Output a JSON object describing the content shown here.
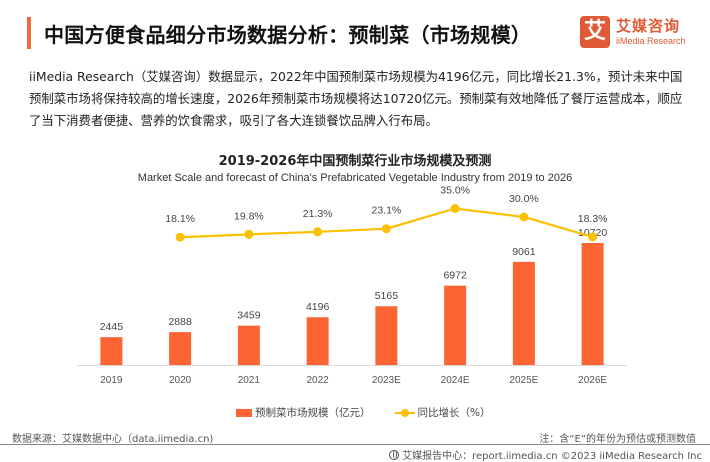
{
  "header": {
    "title": "中国方便食品细分市场数据分析：预制菜（市场规模）",
    "accent_color": "#f46a3c"
  },
  "logo": {
    "glyph": "艾",
    "name_cn": "艾媒咨询",
    "name_en": "iiMedia Research",
    "color": "#e05a35"
  },
  "intro": {
    "text": "iiMedia Research（艾媒咨询）数据显示，2022年中国预制菜市场规模为4196亿元，同比增长21.3%，预计未来中国预制菜市场将保持较高的增长速度，2026年预制菜市场规模将达10720亿元。预制菜有效地降低了餐厅运营成本，顺应了当下消费者便捷、营养的饮食需求，吸引了各大连锁餐饮品牌入行布局。"
  },
  "chart_data": {
    "type": "bar",
    "title": "2019-2026年中国预制菜行业市场规模及预测",
    "subtitle": "Market Scale and forecast of China's Prefabricated Vegetable Industry from 2019 to 2026",
    "xlabel": "",
    "ylabel": "",
    "grid": false,
    "legend_position": "bottom-center",
    "categories": [
      "2019",
      "2020",
      "2021",
      "2022",
      "2023E",
      "2024E",
      "2025E",
      "2026E"
    ],
    "series": [
      {
        "name": "预制菜市场规模（亿元）",
        "type": "bar",
        "color": "#fc6434",
        "values": [
          2445,
          2888,
          3459,
          4196,
          5165,
          6972,
          9061,
          10720
        ],
        "labels": [
          "2445",
          "2888",
          "3459",
          "4196",
          "5165",
          "6972",
          "9061",
          "10720"
        ]
      },
      {
        "name": "同比增长（%）",
        "type": "line",
        "color": "#fbc000",
        "values": [
          null,
          18.1,
          19.8,
          21.3,
          23.1,
          35.0,
          30.0,
          18.3
        ],
        "labels": [
          "",
          "18.1%",
          "19.8%",
          "21.3%",
          "23.1%",
          "35.0%",
          "30.0%",
          "18.3%"
        ]
      }
    ],
    "bar_ylim": [
      0,
      12000
    ],
    "line_ylim": [
      -60,
      40
    ]
  },
  "footer": {
    "source": "数据来源：艾媒数据中心（data.iimedia.cn)",
    "note": "注：含“E”的年份为预估或预测数值",
    "credit": "艾媒报告中心：report.iimedia.cn  ©2023  iiMedia Research  Inc",
    "credit_icon": "globe-icon"
  }
}
